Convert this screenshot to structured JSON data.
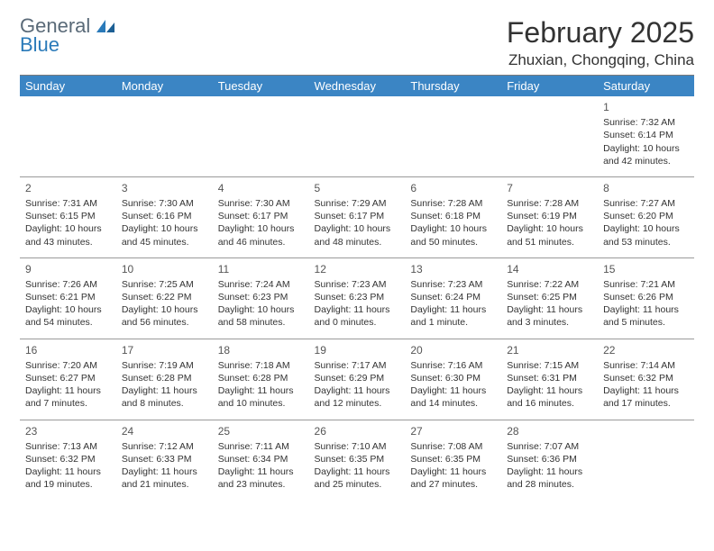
{
  "brand": {
    "line1": "General",
    "line2": "Blue",
    "color_general": "#5a6a78",
    "color_blue": "#2a7ab9"
  },
  "title": "February 2025",
  "location": "Zhuxian, Chongqing, China",
  "header_bg": "#3b85c4",
  "header_fg": "#ffffff",
  "grid_line": "#9a9a9a",
  "weekdays": [
    "Sunday",
    "Monday",
    "Tuesday",
    "Wednesday",
    "Thursday",
    "Friday",
    "Saturday"
  ],
  "weeks": [
    [
      null,
      null,
      null,
      null,
      null,
      null,
      {
        "n": "1",
        "sr": "Sunrise: 7:32 AM",
        "ss": "Sunset: 6:14 PM",
        "dl": "Daylight: 10 hours and 42 minutes."
      }
    ],
    [
      {
        "n": "2",
        "sr": "Sunrise: 7:31 AM",
        "ss": "Sunset: 6:15 PM",
        "dl": "Daylight: 10 hours and 43 minutes."
      },
      {
        "n": "3",
        "sr": "Sunrise: 7:30 AM",
        "ss": "Sunset: 6:16 PM",
        "dl": "Daylight: 10 hours and 45 minutes."
      },
      {
        "n": "4",
        "sr": "Sunrise: 7:30 AM",
        "ss": "Sunset: 6:17 PM",
        "dl": "Daylight: 10 hours and 46 minutes."
      },
      {
        "n": "5",
        "sr": "Sunrise: 7:29 AM",
        "ss": "Sunset: 6:17 PM",
        "dl": "Daylight: 10 hours and 48 minutes."
      },
      {
        "n": "6",
        "sr": "Sunrise: 7:28 AM",
        "ss": "Sunset: 6:18 PM",
        "dl": "Daylight: 10 hours and 50 minutes."
      },
      {
        "n": "7",
        "sr": "Sunrise: 7:28 AM",
        "ss": "Sunset: 6:19 PM",
        "dl": "Daylight: 10 hours and 51 minutes."
      },
      {
        "n": "8",
        "sr": "Sunrise: 7:27 AM",
        "ss": "Sunset: 6:20 PM",
        "dl": "Daylight: 10 hours and 53 minutes."
      }
    ],
    [
      {
        "n": "9",
        "sr": "Sunrise: 7:26 AM",
        "ss": "Sunset: 6:21 PM",
        "dl": "Daylight: 10 hours and 54 minutes."
      },
      {
        "n": "10",
        "sr": "Sunrise: 7:25 AM",
        "ss": "Sunset: 6:22 PM",
        "dl": "Daylight: 10 hours and 56 minutes."
      },
      {
        "n": "11",
        "sr": "Sunrise: 7:24 AM",
        "ss": "Sunset: 6:23 PM",
        "dl": "Daylight: 10 hours and 58 minutes."
      },
      {
        "n": "12",
        "sr": "Sunrise: 7:23 AM",
        "ss": "Sunset: 6:23 PM",
        "dl": "Daylight: 11 hours and 0 minutes."
      },
      {
        "n": "13",
        "sr": "Sunrise: 7:23 AM",
        "ss": "Sunset: 6:24 PM",
        "dl": "Daylight: 11 hours and 1 minute."
      },
      {
        "n": "14",
        "sr": "Sunrise: 7:22 AM",
        "ss": "Sunset: 6:25 PM",
        "dl": "Daylight: 11 hours and 3 minutes."
      },
      {
        "n": "15",
        "sr": "Sunrise: 7:21 AM",
        "ss": "Sunset: 6:26 PM",
        "dl": "Daylight: 11 hours and 5 minutes."
      }
    ],
    [
      {
        "n": "16",
        "sr": "Sunrise: 7:20 AM",
        "ss": "Sunset: 6:27 PM",
        "dl": "Daylight: 11 hours and 7 minutes."
      },
      {
        "n": "17",
        "sr": "Sunrise: 7:19 AM",
        "ss": "Sunset: 6:28 PM",
        "dl": "Daylight: 11 hours and 8 minutes."
      },
      {
        "n": "18",
        "sr": "Sunrise: 7:18 AM",
        "ss": "Sunset: 6:28 PM",
        "dl": "Daylight: 11 hours and 10 minutes."
      },
      {
        "n": "19",
        "sr": "Sunrise: 7:17 AM",
        "ss": "Sunset: 6:29 PM",
        "dl": "Daylight: 11 hours and 12 minutes."
      },
      {
        "n": "20",
        "sr": "Sunrise: 7:16 AM",
        "ss": "Sunset: 6:30 PM",
        "dl": "Daylight: 11 hours and 14 minutes."
      },
      {
        "n": "21",
        "sr": "Sunrise: 7:15 AM",
        "ss": "Sunset: 6:31 PM",
        "dl": "Daylight: 11 hours and 16 minutes."
      },
      {
        "n": "22",
        "sr": "Sunrise: 7:14 AM",
        "ss": "Sunset: 6:32 PM",
        "dl": "Daylight: 11 hours and 17 minutes."
      }
    ],
    [
      {
        "n": "23",
        "sr": "Sunrise: 7:13 AM",
        "ss": "Sunset: 6:32 PM",
        "dl": "Daylight: 11 hours and 19 minutes."
      },
      {
        "n": "24",
        "sr": "Sunrise: 7:12 AM",
        "ss": "Sunset: 6:33 PM",
        "dl": "Daylight: 11 hours and 21 minutes."
      },
      {
        "n": "25",
        "sr": "Sunrise: 7:11 AM",
        "ss": "Sunset: 6:34 PM",
        "dl": "Daylight: 11 hours and 23 minutes."
      },
      {
        "n": "26",
        "sr": "Sunrise: 7:10 AM",
        "ss": "Sunset: 6:35 PM",
        "dl": "Daylight: 11 hours and 25 minutes."
      },
      {
        "n": "27",
        "sr": "Sunrise: 7:08 AM",
        "ss": "Sunset: 6:35 PM",
        "dl": "Daylight: 11 hours and 27 minutes."
      },
      {
        "n": "28",
        "sr": "Sunrise: 7:07 AM",
        "ss": "Sunset: 6:36 PM",
        "dl": "Daylight: 11 hours and 28 minutes."
      },
      null
    ]
  ]
}
